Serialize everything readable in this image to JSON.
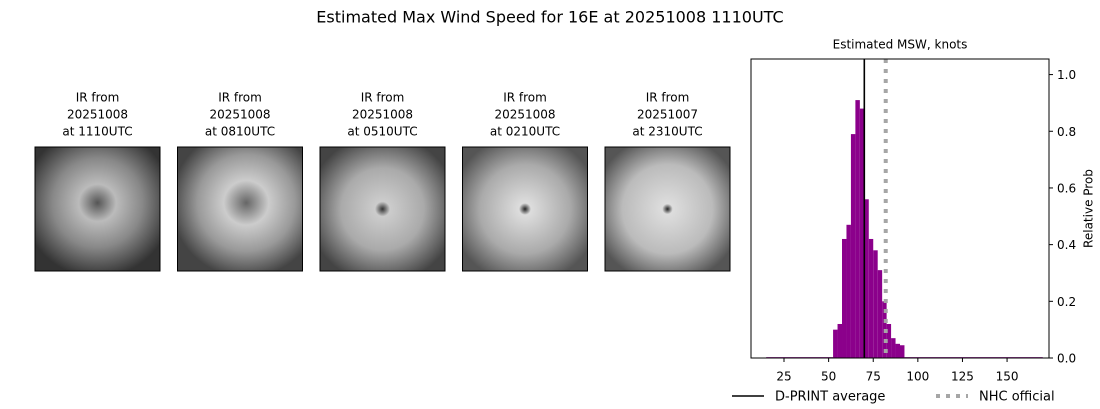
{
  "title": "Estimated Max Wind Speed for 16E at 20251008 1110UTC",
  "images": [
    {
      "lines": [
        "IR from",
        "20251008",
        "at 1110UTC"
      ]
    },
    {
      "lines": [
        "IR from",
        "20251008",
        "at 0810UTC"
      ]
    },
    {
      "lines": [
        "IR from",
        "20251008",
        "at 0510UTC"
      ]
    },
    {
      "lines": [
        "IR from",
        "20251008",
        "at 0210UTC"
      ]
    },
    {
      "lines": [
        "IR from",
        "20251007",
        "at 2310UTC"
      ]
    }
  ],
  "chart_data": {
    "type": "histogram",
    "title": "Estimated MSW, knots",
    "y_label": "Relative Prob",
    "color": "#8b008b",
    "bins": [
      15,
      52.5,
      55,
      57.5,
      60,
      62.5,
      65,
      67.5,
      70,
      72.5,
      75,
      77.5,
      80,
      82.5,
      85,
      87.5,
      90,
      92.5,
      170
    ],
    "values": [
      0.003,
      0.1,
      0.12,
      0.42,
      0.47,
      0.79,
      0.91,
      0.88,
      0.56,
      0.42,
      0.38,
      0.31,
      0.2,
      0.12,
      0.07,
      0.05,
      0.045,
      0.003
    ],
    "xlim": [
      6.5,
      173.5
    ],
    "ylim": [
      0,
      1.055
    ],
    "xticks": [
      25,
      50,
      75,
      100,
      125,
      150
    ],
    "yticks": [
      {
        "value": 0,
        "label": "0.0"
      },
      {
        "value": 0.2,
        "label": "0.2"
      },
      {
        "value": 0.4,
        "label": "0.4"
      },
      {
        "value": 0.6,
        "label": "0.6"
      },
      {
        "value": 0.8,
        "label": "0.8"
      },
      {
        "value": 1,
        "label": "1.0"
      }
    ],
    "lines": [
      {
        "name": "D-PRINT average",
        "x": 70,
        "color": "#000000",
        "style": "solid"
      },
      {
        "name": "NHC official",
        "x": 82,
        "color": "#a6a6a6",
        "style": "dotted"
      }
    ]
  }
}
